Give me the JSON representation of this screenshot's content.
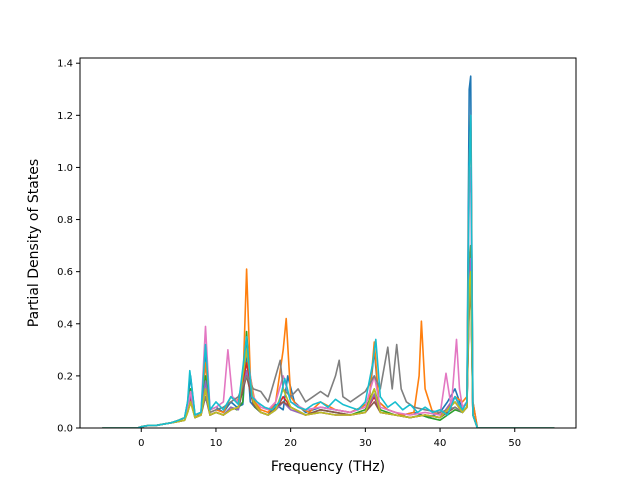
{
  "chart_data": {
    "type": "line",
    "title": "",
    "xlabel": "Frequency (THz)",
    "ylabel": "Partial Density of States",
    "xlim": [
      -8.2,
      58.2
    ],
    "ylim": [
      0,
      1.42
    ],
    "xticks": [
      0,
      10,
      20,
      30,
      40,
      50
    ],
    "yticks": [
      0.0,
      0.2,
      0.4,
      0.6,
      0.8,
      1.0,
      1.2,
      1.4
    ],
    "xtick_labels": [
      "0",
      "10",
      "20",
      "30",
      "40",
      "50"
    ],
    "ytick_labels": [
      "0.0",
      "0.2",
      "0.4",
      "0.6",
      "0.8",
      "1.0",
      "1.2",
      "1.4"
    ],
    "grid": false,
    "series": [
      {
        "color": "#1f77b4",
        "x": [
          -5.2,
          -0.5,
          0,
          1,
          2,
          3,
          4,
          5,
          5.8,
          6.2,
          6.6,
          7.2,
          8,
          8.6,
          9.2,
          10,
          11,
          12,
          12.8,
          13.6,
          14.1,
          14.6,
          15.2,
          16,
          17,
          18,
          19,
          19.6,
          20.5,
          22,
          24,
          26,
          28,
          29.5,
          30.5,
          31.2,
          31.8,
          33,
          35,
          36.5,
          37.5,
          38.5,
          40,
          41,
          42,
          43,
          43.6,
          43.9,
          44.1,
          44.4,
          45,
          46,
          50,
          55.3
        ],
        "y": [
          0,
          0,
          0.005,
          0.01,
          0.01,
          0.015,
          0.02,
          0.03,
          0.04,
          0.1,
          0.2,
          0.05,
          0.06,
          0.3,
          0.07,
          0.08,
          0.06,
          0.1,
          0.08,
          0.09,
          0.3,
          0.1,
          0.08,
          0.06,
          0.05,
          0.09,
          0.07,
          0.2,
          0.1,
          0.06,
          0.08,
          0.07,
          0.06,
          0.08,
          0.1,
          0.3,
          0.1,
          0.07,
          0.05,
          0.06,
          0.05,
          0.04,
          0.06,
          0.1,
          0.15,
          0.07,
          0.1,
          1.3,
          1.35,
          0.1,
          0,
          0,
          0,
          0
        ]
      },
      {
        "color": "#ff7f0e",
        "x": [
          -5.2,
          -0.5,
          0,
          1,
          2,
          3,
          4,
          5,
          5.8,
          6.2,
          6.6,
          7.2,
          8,
          8.6,
          9.2,
          10,
          11,
          12,
          12.8,
          13.6,
          14.1,
          14.6,
          15.2,
          16,
          17,
          18,
          19,
          19.4,
          20,
          21,
          22.5,
          24,
          26,
          28,
          29.5,
          30.5,
          31.2,
          31.8,
          33,
          35,
          36.5,
          37.2,
          37.5,
          38,
          39,
          40,
          41,
          42,
          43,
          43.6,
          43.9,
          44.1,
          44.4,
          45,
          46,
          50,
          55.3
        ],
        "y": [
          0,
          0,
          0.005,
          0.01,
          0.01,
          0.015,
          0.02,
          0.03,
          0.04,
          0.08,
          0.15,
          0.05,
          0.05,
          0.25,
          0.06,
          0.07,
          0.06,
          0.12,
          0.1,
          0.15,
          0.61,
          0.2,
          0.1,
          0.07,
          0.06,
          0.1,
          0.3,
          0.42,
          0.12,
          0.08,
          0.06,
          0.1,
          0.07,
          0.06,
          0.08,
          0.1,
          0.33,
          0.1,
          0.07,
          0.05,
          0.06,
          0.2,
          0.41,
          0.15,
          0.06,
          0.05,
          0.07,
          0.12,
          0.1,
          0.12,
          1.0,
          1.2,
          0.1,
          0,
          0,
          0,
          0
        ]
      },
      {
        "color": "#2ca02c",
        "x": [
          -5.2,
          -0.5,
          0,
          1,
          2,
          3,
          4,
          5,
          5.8,
          6.2,
          6.6,
          7.2,
          8,
          8.6,
          9.2,
          10,
          11,
          12,
          12.8,
          13.6,
          14.1,
          14.6,
          15.2,
          16,
          17,
          18,
          19,
          20,
          22,
          24,
          26,
          28,
          30,
          31.2,
          32,
          34,
          36,
          37.5,
          38.5,
          40,
          41,
          42,
          43,
          43.6,
          43.9,
          44.1,
          44.4,
          45,
          46,
          50,
          55.3
        ],
        "y": [
          0,
          0,
          0.005,
          0.01,
          0.01,
          0.015,
          0.02,
          0.025,
          0.03,
          0.08,
          0.15,
          0.04,
          0.05,
          0.2,
          0.05,
          0.06,
          0.05,
          0.08,
          0.07,
          0.1,
          0.37,
          0.15,
          0.08,
          0.06,
          0.05,
          0.07,
          0.1,
          0.08,
          0.05,
          0.07,
          0.06,
          0.05,
          0.07,
          0.15,
          0.07,
          0.05,
          0.04,
          0.05,
          0.04,
          0.03,
          0.05,
          0.07,
          0.06,
          0.08,
          0.6,
          0.7,
          0.05,
          0,
          0,
          0,
          0
        ]
      },
      {
        "color": "#d62728",
        "x": [
          -5.2,
          -0.5,
          0,
          1,
          2,
          3,
          4,
          5,
          5.8,
          6.2,
          6.6,
          7.2,
          8,
          8.6,
          9.2,
          10,
          11,
          12,
          13,
          14.1,
          15,
          16,
          17,
          18,
          19,
          20,
          22,
          24,
          26,
          28,
          30,
          31.2,
          32,
          34,
          36,
          38,
          40,
          42,
          43,
          43.6,
          43.9,
          44.1,
          44.4,
          45,
          46,
          50,
          55.3
        ],
        "y": [
          0,
          0,
          0.005,
          0.01,
          0.01,
          0.015,
          0.02,
          0.025,
          0.03,
          0.07,
          0.12,
          0.04,
          0.05,
          0.15,
          0.05,
          0.06,
          0.05,
          0.07,
          0.08,
          0.25,
          0.1,
          0.06,
          0.05,
          0.07,
          0.12,
          0.08,
          0.05,
          0.06,
          0.05,
          0.05,
          0.06,
          0.12,
          0.06,
          0.05,
          0.04,
          0.05,
          0.04,
          0.1,
          0.06,
          0.08,
          0.5,
          0.6,
          0.05,
          0,
          0,
          0,
          0
        ]
      },
      {
        "color": "#9467bd",
        "x": [
          -5.2,
          -0.5,
          0,
          1,
          2,
          3,
          4,
          5,
          5.8,
          6.2,
          6.6,
          7.2,
          8,
          8.6,
          9.2,
          10,
          11,
          12,
          13,
          14.1,
          15,
          16,
          17,
          18,
          19,
          20,
          22,
          24,
          26,
          28,
          30,
          31.2,
          32,
          34,
          36,
          38,
          40,
          42,
          43,
          43.6,
          43.9,
          44.1,
          44.4,
          45,
          46,
          50,
          55.3
        ],
        "y": [
          0,
          0,
          0.005,
          0.01,
          0.01,
          0.015,
          0.02,
          0.025,
          0.03,
          0.07,
          0.13,
          0.04,
          0.05,
          0.18,
          0.05,
          0.06,
          0.05,
          0.08,
          0.07,
          0.22,
          0.09,
          0.06,
          0.05,
          0.07,
          0.1,
          0.07,
          0.05,
          0.06,
          0.05,
          0.05,
          0.06,
          0.13,
          0.06,
          0.05,
          0.04,
          0.05,
          0.04,
          0.12,
          0.06,
          0.08,
          0.55,
          0.65,
          0.05,
          0,
          0,
          0,
          0
        ]
      },
      {
        "color": "#8c564b",
        "x": [
          -5.2,
          -0.5,
          0,
          1,
          2,
          3,
          4,
          5,
          5.8,
          6.2,
          6.6,
          7.2,
          8,
          8.6,
          9.2,
          10,
          11,
          12,
          13,
          14.1,
          15,
          16,
          17,
          18,
          19,
          20,
          22,
          24,
          26,
          28,
          30,
          31.2,
          32,
          34,
          36,
          38,
          40,
          42,
          43,
          43.6,
          43.9,
          44.1,
          44.4,
          45,
          46,
          50,
          55.3
        ],
        "y": [
          0,
          0,
          0.005,
          0.01,
          0.01,
          0.015,
          0.02,
          0.025,
          0.03,
          0.06,
          0.1,
          0.04,
          0.05,
          0.12,
          0.05,
          0.06,
          0.05,
          0.07,
          0.08,
          0.2,
          0.09,
          0.06,
          0.05,
          0.08,
          0.1,
          0.08,
          0.05,
          0.07,
          0.06,
          0.05,
          0.06,
          0.1,
          0.06,
          0.05,
          0.04,
          0.05,
          0.04,
          0.08,
          0.06,
          0.08,
          0.45,
          0.55,
          0.05,
          0,
          0,
          0,
          0
        ]
      },
      {
        "color": "#e377c2",
        "x": [
          -5.2,
          -0.5,
          0,
          1,
          2,
          3,
          4,
          5,
          5.8,
          6.2,
          6.6,
          7.2,
          8,
          8.6,
          9.2,
          10,
          11,
          11.6,
          12.2,
          13,
          14.1,
          15,
          16,
          17,
          18,
          19,
          20,
          22,
          24,
          26,
          28,
          30,
          31.2,
          32,
          34,
          36,
          38,
          40,
          40.8,
          41.5,
          42.2,
          42.6,
          43,
          43.6,
          43.9,
          44.1,
          44.4,
          45,
          46,
          50,
          55.3
        ],
        "y": [
          0,
          0,
          0.005,
          0.01,
          0.01,
          0.015,
          0.02,
          0.025,
          0.03,
          0.08,
          0.14,
          0.05,
          0.06,
          0.39,
          0.07,
          0.08,
          0.1,
          0.3,
          0.12,
          0.1,
          0.3,
          0.12,
          0.08,
          0.07,
          0.1,
          0.2,
          0.1,
          0.07,
          0.08,
          0.07,
          0.06,
          0.08,
          0.2,
          0.08,
          0.06,
          0.05,
          0.06,
          0.05,
          0.21,
          0.08,
          0.34,
          0.15,
          0.08,
          0.1,
          0.9,
          1.0,
          0.05,
          0,
          0,
          0,
          0
        ]
      },
      {
        "color": "#7f7f7f",
        "x": [
          -5.2,
          -0.5,
          0,
          1,
          2,
          3,
          4,
          5,
          5.8,
          6.2,
          6.6,
          7.2,
          8,
          8.6,
          9.2,
          10,
          11,
          12,
          13,
          14.1,
          15,
          16,
          17,
          18,
          18.6,
          19,
          20,
          21,
          22,
          23,
          24,
          25,
          26,
          26.5,
          27,
          28,
          29,
          30,
          31.2,
          32,
          33,
          33.6,
          34.2,
          34.8,
          35.5,
          36.5,
          38,
          40,
          42,
          43,
          43.6,
          43.9,
          44.1,
          44.4,
          45,
          46,
          50,
          55.3
        ],
        "y": [
          0,
          0,
          0.005,
          0.01,
          0.01,
          0.015,
          0.02,
          0.025,
          0.03,
          0.06,
          0.1,
          0.05,
          0.06,
          0.12,
          0.06,
          0.07,
          0.08,
          0.1,
          0.12,
          0.2,
          0.15,
          0.14,
          0.1,
          0.2,
          0.26,
          0.15,
          0.12,
          0.15,
          0.1,
          0.12,
          0.14,
          0.12,
          0.2,
          0.26,
          0.12,
          0.1,
          0.12,
          0.14,
          0.2,
          0.15,
          0.31,
          0.15,
          0.32,
          0.15,
          0.1,
          0.08,
          0.07,
          0.06,
          0.08,
          0.06,
          0.08,
          0.5,
          0.6,
          0.05,
          0,
          0,
          0,
          0
        ]
      },
      {
        "color": "#bcbd22",
        "x": [
          -5.2,
          -0.5,
          0,
          1,
          2,
          3,
          4,
          5,
          5.8,
          6.2,
          6.6,
          7.2,
          8,
          8.6,
          9.2,
          10,
          11,
          12,
          13,
          14.1,
          15,
          16,
          17,
          18,
          19,
          20,
          22,
          24,
          26,
          28,
          30,
          31.2,
          32,
          34,
          36,
          38,
          40,
          42,
          43,
          43.6,
          43.9,
          44.1,
          44.4,
          45,
          46,
          50,
          55.3
        ],
        "y": [
          0,
          0,
          0.005,
          0.01,
          0.01,
          0.015,
          0.02,
          0.025,
          0.03,
          0.06,
          0.1,
          0.04,
          0.05,
          0.15,
          0.05,
          0.06,
          0.05,
          0.07,
          0.08,
          0.3,
          0.1,
          0.06,
          0.05,
          0.07,
          0.15,
          0.08,
          0.05,
          0.06,
          0.05,
          0.05,
          0.06,
          0.15,
          0.06,
          0.05,
          0.04,
          0.05,
          0.04,
          0.1,
          0.06,
          0.08,
          0.55,
          0.6,
          0.05,
          0,
          0,
          0,
          0
        ]
      },
      {
        "color": "#17becf",
        "x": [
          -5.2,
          -0.5,
          0,
          1,
          2,
          3,
          4,
          5,
          5.8,
          6.2,
          6.5,
          7.2,
          8,
          8.6,
          9.2,
          10,
          11,
          12,
          13,
          14.1,
          14.8,
          15.5,
          16.5,
          17.5,
          18.5,
          19.2,
          20,
          21,
          22,
          23,
          24,
          25,
          26,
          27,
          28,
          29,
          30,
          31,
          31.4,
          32,
          33,
          34,
          35,
          36,
          37,
          38,
          39,
          40,
          41,
          42,
          43,
          43.6,
          43.9,
          44.1,
          44.4,
          45,
          46,
          50,
          55.3
        ],
        "y": [
          0,
          0,
          0.005,
          0.01,
          0.01,
          0.015,
          0.02,
          0.03,
          0.04,
          0.1,
          0.22,
          0.05,
          0.06,
          0.32,
          0.07,
          0.1,
          0.07,
          0.12,
          0.09,
          0.35,
          0.12,
          0.1,
          0.08,
          0.07,
          0.1,
          0.19,
          0.1,
          0.08,
          0.07,
          0.09,
          0.1,
          0.08,
          0.11,
          0.09,
          0.08,
          0.07,
          0.1,
          0.25,
          0.34,
          0.12,
          0.08,
          0.1,
          0.07,
          0.09,
          0.06,
          0.08,
          0.06,
          0.07,
          0.05,
          0.12,
          0.07,
          0.1,
          1.0,
          1.2,
          0.05,
          0,
          0,
          0,
          0
        ]
      }
    ]
  }
}
